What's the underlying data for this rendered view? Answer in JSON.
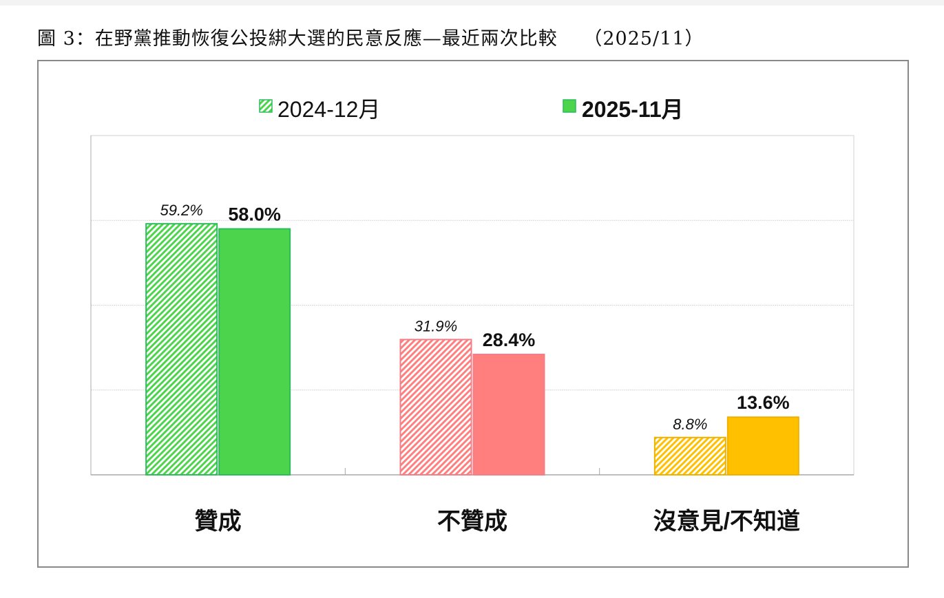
{
  "title": "圖 3：在野黨推動恢復公投綁大選的民意反應—最近兩次比較　 （2025/11）",
  "chart_data": {
    "type": "bar",
    "title": "圖 3：在野黨推動恢復公投綁大選的民意反應—最近兩次比較　 （2025/11）",
    "categories": [
      "贊成",
      "不贊成",
      "沒意見/不知道"
    ],
    "series": [
      {
        "name": "2024-12月",
        "values": [
          59.2,
          31.9,
          8.8
        ],
        "labels": [
          "59.2%",
          "31.9%",
          "8.8%"
        ],
        "style": "hatched"
      },
      {
        "name": "2025-11月",
        "values": [
          58.0,
          28.4,
          13.6
        ],
        "labels": [
          "58.0%",
          "28.4%",
          "13.6%"
        ],
        "style": "solid"
      }
    ],
    "category_colors": [
      "#4cd44c",
      "#ff7f7f",
      "#ffc000"
    ],
    "category_border_colors": [
      "#2dbb5c",
      "#f07f88",
      "#f0b000"
    ],
    "ylim": [
      0,
      80
    ],
    "grid": true,
    "y_axis_labels_shown": false,
    "legend_position": "top-center",
    "xlabel": "",
    "ylabel": ""
  }
}
